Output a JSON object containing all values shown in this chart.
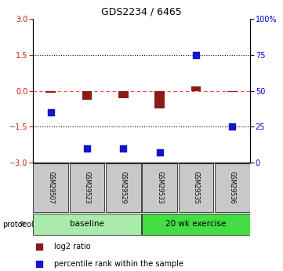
{
  "title": "GDS2234 / 6465",
  "samples": [
    "GSM29507",
    "GSM29523",
    "GSM29529",
    "GSM29533",
    "GSM29535",
    "GSM29536"
  ],
  "log2_ratio": [
    -0.08,
    -0.38,
    -0.32,
    -0.75,
    0.18,
    -0.05
  ],
  "percentile_rank": [
    35,
    10,
    10,
    7,
    75,
    25
  ],
  "ylim_left": [
    -3,
    3
  ],
  "ylim_right": [
    0,
    100
  ],
  "yticks_left": [
    -3,
    -1.5,
    0,
    1.5,
    3
  ],
  "yticks_right": [
    0,
    25,
    50,
    75,
    100
  ],
  "bar_color_red": "#8B1A1A",
  "bar_color_blue": "#1515C8",
  "dashed_line_color": "#FF4444",
  "dotted_line_color": "#000000",
  "baseline_color": "#AAEAAA",
  "exercise_color": "#44DD44",
  "sample_box_color": "#C8C8C8",
  "legend_red_label": "log2 ratio",
  "legend_blue_label": "percentile rank within the sample",
  "protocol_label": "protocol",
  "left_tick_color": "#CC2200",
  "right_tick_color": "#0000CC"
}
